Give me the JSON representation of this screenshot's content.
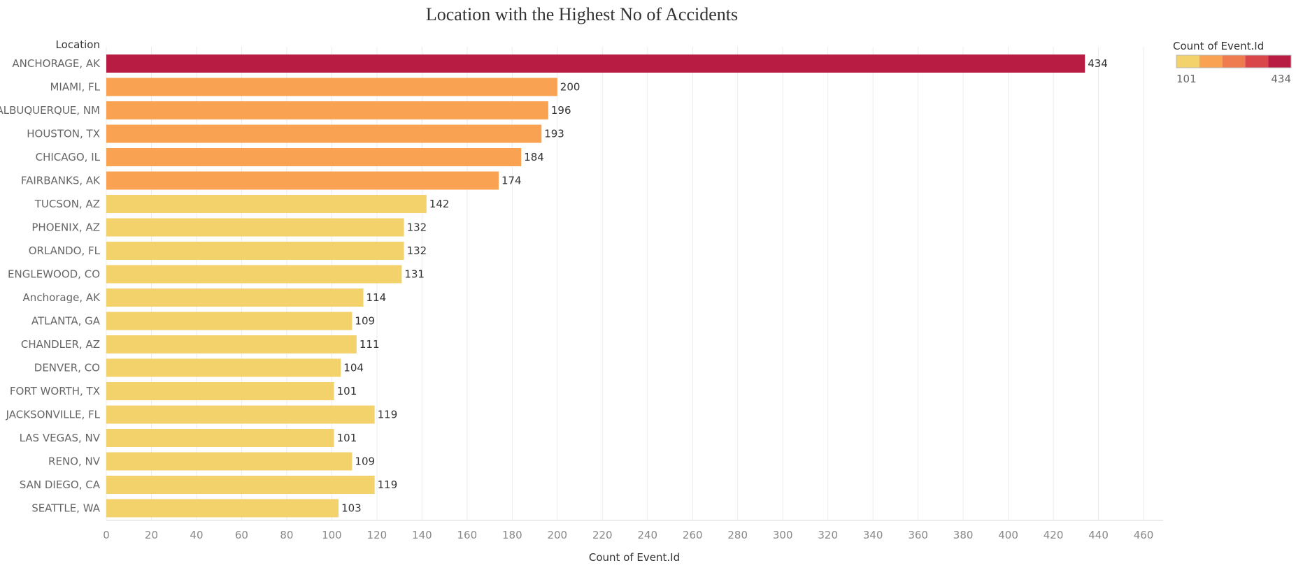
{
  "chart_data": {
    "type": "bar",
    "orientation": "horizontal",
    "title": "Location with the Highest No of Accidents",
    "ylabel": "Location",
    "xlabel": "Count of Event.Id",
    "xlim": [
      0,
      470
    ],
    "xticks": [
      0,
      20,
      40,
      60,
      80,
      100,
      120,
      140,
      160,
      180,
      200,
      220,
      240,
      260,
      280,
      300,
      320,
      340,
      360,
      380,
      400,
      420,
      440,
      460
    ],
    "grid": true,
    "categories": [
      "ANCHORAGE, AK",
      "MIAMI, FL",
      "ALBUQUERQUE, NM",
      "HOUSTON, TX",
      "CHICAGO, IL",
      "FAIRBANKS, AK",
      "TUCSON, AZ",
      "PHOENIX, AZ",
      "ORLANDO, FL",
      "ENGLEWOOD, CO",
      "Anchorage, AK",
      "ATLANTA, GA",
      "CHANDLER, AZ",
      "DENVER, CO",
      "FORT WORTH, TX",
      "JACKSONVILLE, FL",
      "LAS VEGAS, NV",
      "RENO, NV",
      "SAN DIEGO, CA",
      "SEATTLE, WA"
    ],
    "values": [
      434,
      200,
      196,
      193,
      184,
      174,
      142,
      132,
      132,
      131,
      114,
      109,
      111,
      104,
      101,
      119,
      101,
      109,
      119,
      103
    ],
    "legend": {
      "title": "Count of Event.Id",
      "min_label": "101",
      "max_label": "434",
      "placement": "top-right",
      "colors": [
        "#f3d26b",
        "#f9a252",
        "#ef7c4e",
        "#d9474b",
        "#b81c42"
      ]
    }
  }
}
